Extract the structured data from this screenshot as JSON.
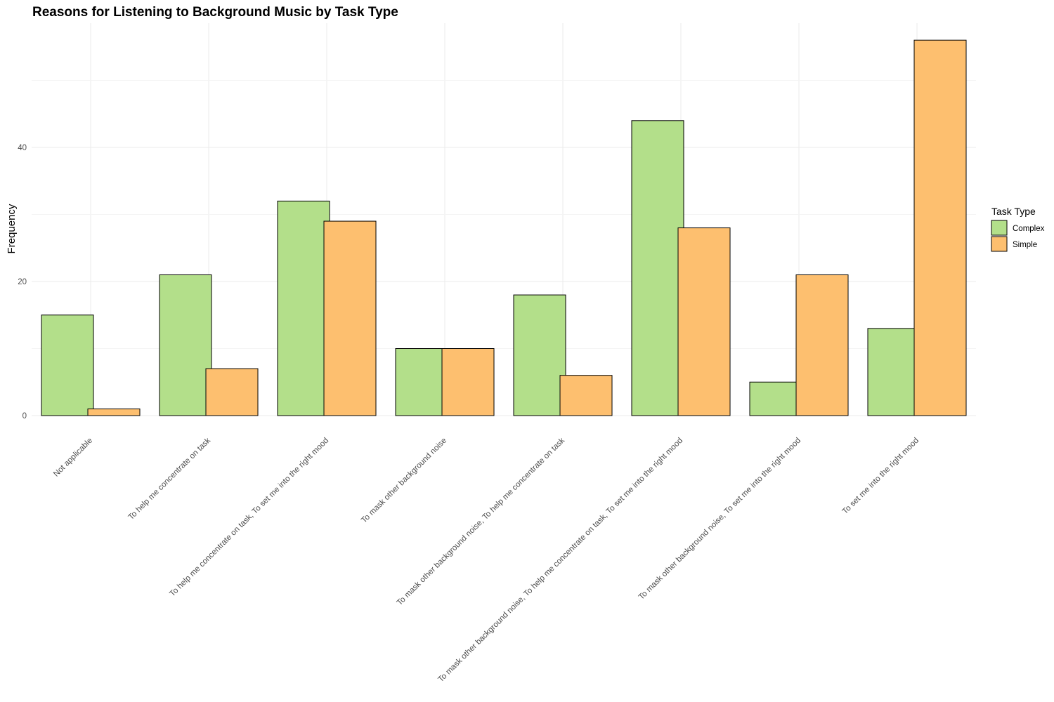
{
  "chart_data": {
    "type": "bar",
    "title": "Reasons for Listening to Background Music by Task Type",
    "xlabel": "",
    "ylabel": "Frequency",
    "ylim": [
      0,
      56
    ],
    "yticks": [
      0,
      20,
      40
    ],
    "grid": true,
    "legend": {
      "title": "Task Type",
      "placement": "right"
    },
    "categories": [
      "Not applicable",
      "To help me concentrate on task",
      "To help me concentrate on task,  To set me into the right mood",
      "To mask other background noise",
      "To mask other background noise,  To help me concentrate on task",
      "To mask other background noise,  To help me concentrate on task,  To set me into the right mood",
      "To mask other background noise,  To set me into the right mood",
      "To set me into the right mood"
    ],
    "series": [
      {
        "name": "Complex",
        "color": "#b3df8a",
        "values": [
          15,
          21,
          32,
          10,
          18,
          44,
          5,
          13
        ]
      },
      {
        "name": "Simple",
        "color": "#fdbf6f",
        "values": [
          1,
          7,
          29,
          10,
          6,
          28,
          21,
          56
        ]
      }
    ]
  }
}
